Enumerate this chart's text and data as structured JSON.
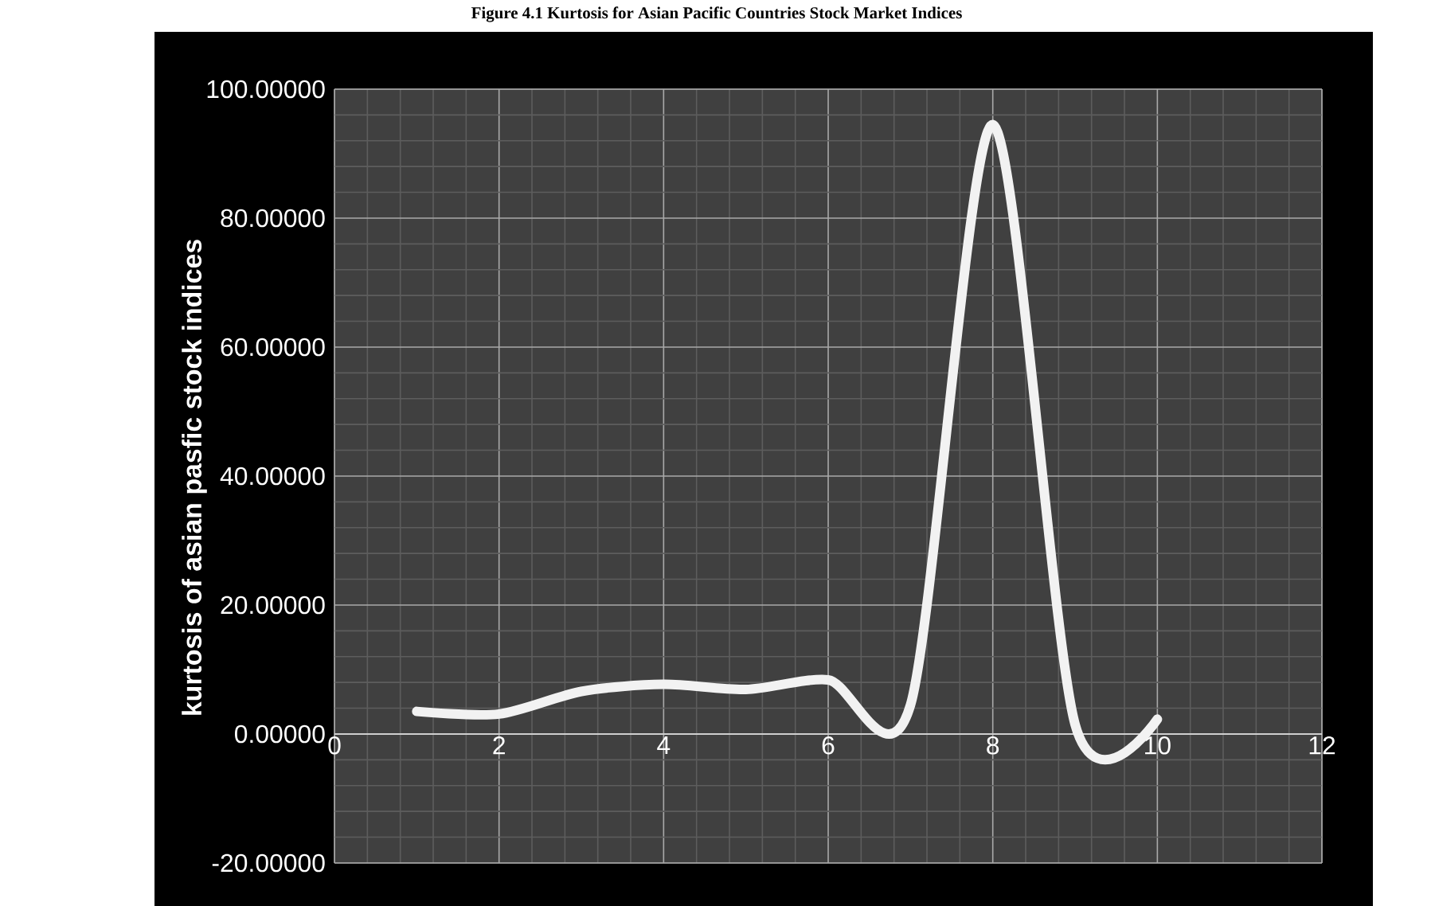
{
  "chart_data": {
    "type": "line",
    "title": "Figure 4.1 Kurtosis for Asian Pacific Countries Stock Market Indices",
    "ylabel": "kurtosis of asian pasfic stock indices",
    "x": [
      1,
      2,
      3,
      4,
      5,
      6,
      7,
      8,
      9,
      10
    ],
    "series": [
      {
        "color": "#f2f2f2",
        "values": [
          3.5,
          3.1,
          6.6,
          7.7,
          6.9,
          8.4,
          4.5,
          94.5,
          1.5,
          2.3
        ]
      }
    ],
    "xlim": [
      0,
      12
    ],
    "xticks": [
      0,
      2,
      4,
      6,
      8,
      10,
      12
    ],
    "ylim": [
      -20,
      100
    ],
    "yticks": [
      {
        "value": -20,
        "label": "-20.00000"
      },
      {
        "value": 0,
        "label": "0.00000"
      },
      {
        "value": 20,
        "label": "20.00000"
      },
      {
        "value": 40,
        "label": "40.00000"
      },
      {
        "value": 60,
        "label": "60.00000"
      },
      {
        "value": 80,
        "label": "80.00000"
      },
      {
        "value": 100,
        "label": "100.00000"
      }
    ],
    "grid": true,
    "marker": "none",
    "line_style": "solid"
  }
}
